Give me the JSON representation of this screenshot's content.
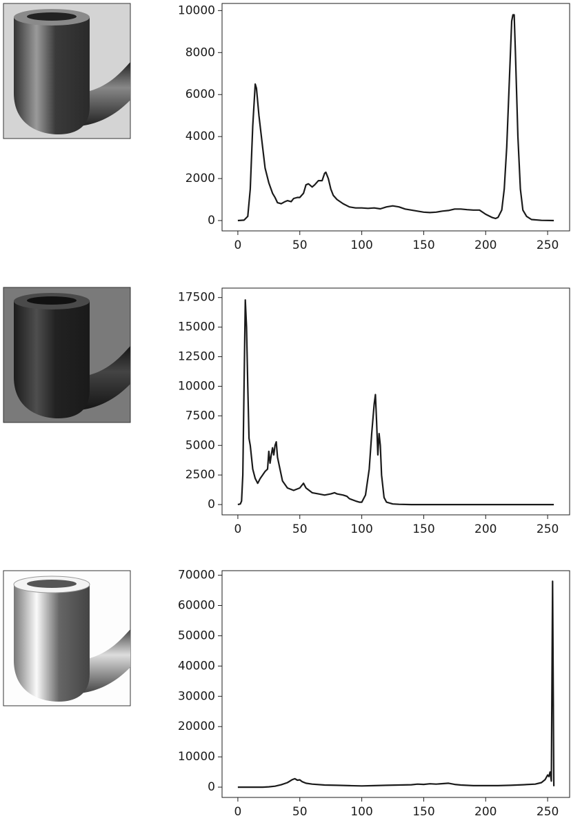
{
  "chart_data": [
    {
      "type": "line",
      "color": "#1a1a1a",
      "x": [
        0,
        5,
        8,
        10,
        12,
        14,
        15,
        17,
        20,
        22,
        25,
        28,
        30,
        32,
        35,
        38,
        40,
        43,
        45,
        48,
        50,
        53,
        55,
        57,
        60,
        62,
        65,
        68,
        70,
        71,
        73,
        75,
        77,
        80,
        85,
        90,
        95,
        100,
        105,
        110,
        115,
        120,
        125,
        130,
        135,
        140,
        145,
        150,
        155,
        160,
        165,
        170,
        175,
        180,
        185,
        190,
        195,
        200,
        205,
        208,
        210,
        213,
        215,
        217,
        219,
        221,
        222,
        223,
        224,
        226,
        228,
        230,
        233,
        237,
        245,
        255
      ],
      "values": [
        0,
        20,
        200,
        1500,
        4500,
        6500,
        6300,
        5000,
        3500,
        2500,
        1800,
        1300,
        1100,
        850,
        800,
        900,
        950,
        900,
        1050,
        1100,
        1100,
        1300,
        1700,
        1750,
        1600,
        1700,
        1900,
        1900,
        2250,
        2300,
        2000,
        1500,
        1200,
        1000,
        800,
        650,
        600,
        600,
        580,
        600,
        560,
        650,
        700,
        650,
        550,
        500,
        450,
        400,
        380,
        400,
        450,
        480,
        550,
        550,
        520,
        500,
        500,
        300,
        150,
        100,
        150,
        500,
        1500,
        3500,
        6500,
        9500,
        9800,
        9800,
        8000,
        4000,
        1500,
        500,
        200,
        50,
        10,
        0
      ],
      "xlim": [
        -12.75,
        267.75
      ],
      "ylim": [
        -492,
        10340
      ],
      "xticks": [
        0,
        50,
        100,
        150,
        200,
        250
      ],
      "yticks": [
        0,
        2000,
        4000,
        6000,
        8000,
        10000
      ]
    },
    {
      "type": "line",
      "color": "#1a1a1a",
      "x": [
        0,
        2,
        3,
        4,
        5,
        6,
        7,
        8,
        9,
        10,
        12,
        14,
        16,
        18,
        20,
        22,
        24,
        25,
        26,
        27,
        28,
        29,
        30,
        31,
        32,
        34,
        36,
        40,
        45,
        50,
        53,
        55,
        60,
        65,
        70,
        75,
        78,
        80,
        85,
        88,
        90,
        95,
        98,
        100,
        103,
        106,
        108,
        110,
        111,
        112,
        113,
        114,
        115,
        116,
        118,
        120,
        125,
        130,
        140,
        255
      ],
      "values": [
        0,
        50,
        300,
        2500,
        10000,
        17300,
        15000,
        10000,
        5600,
        5000,
        3000,
        2200,
        1800,
        2200,
        2500,
        2800,
        3000,
        4500,
        3500,
        4200,
        4800,
        4200,
        5000,
        5300,
        4000,
        3000,
        2000,
        1400,
        1200,
        1400,
        1800,
        1400,
        1000,
        900,
        800,
        900,
        1000,
        900,
        800,
        700,
        500,
        300,
        200,
        200,
        800,
        3000,
        6000,
        8500,
        9300,
        7000,
        4200,
        6000,
        5000,
        2500,
        600,
        200,
        50,
        20,
        0,
        0
      ],
      "xlim": [
        -12.75,
        267.75
      ],
      "ylim": [
        -870,
        18300
      ],
      "xticks": [
        0,
        50,
        100,
        150,
        200,
        250
      ],
      "yticks": [
        0,
        2500,
        5000,
        7500,
        10000,
        12500,
        15000,
        17500
      ]
    },
    {
      "type": "line",
      "color": "#1a1a1a",
      "x": [
        0,
        20,
        25,
        30,
        35,
        40,
        44,
        46,
        48,
        50,
        52,
        55,
        60,
        70,
        80,
        90,
        100,
        110,
        120,
        130,
        140,
        145,
        150,
        155,
        160,
        170,
        175,
        180,
        190,
        200,
        210,
        220,
        230,
        240,
        245,
        248,
        250,
        251,
        252,
        253,
        254,
        255
      ],
      "values": [
        0,
        0,
        100,
        300,
        800,
        1500,
        2500,
        2800,
        2300,
        2400,
        1800,
        1300,
        1000,
        700,
        600,
        500,
        400,
        500,
        600,
        700,
        800,
        1000,
        900,
        1100,
        1000,
        1300,
        900,
        700,
        500,
        500,
        500,
        600,
        800,
        1000,
        1500,
        2500,
        4000,
        3500,
        5000,
        2000,
        68000,
        300
      ],
      "xlim": [
        -12.75,
        267.75
      ],
      "ylim": [
        -3400,
        71500
      ],
      "xticks": [
        0,
        50,
        100,
        150,
        200,
        250
      ],
      "yticks": [
        0,
        10000,
        20000,
        30000,
        40000,
        50000,
        60000,
        70000
      ]
    }
  ]
}
